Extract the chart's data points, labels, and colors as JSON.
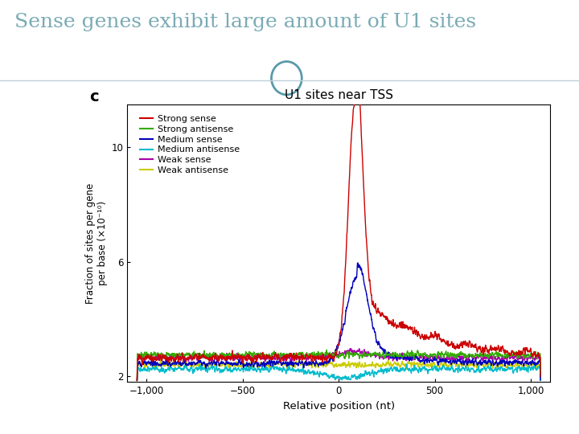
{
  "title": "Sense genes exhibit large amount of U1 sites",
  "title_color": "#7aabb5",
  "plot_title": "U1 sites near TSS",
  "xlabel": "Relative position (nt)",
  "ylabel": "Fraction of sites per gene\nper base (×10⁻¹⁰)",
  "xlim": [
    -1100,
    1100
  ],
  "ylim": [
    1.8,
    11.5
  ],
  "yticks": [
    2,
    6,
    10
  ],
  "xticks": [
    -1000,
    -500,
    0,
    500,
    1000
  ],
  "xticklabels": [
    "−1,000",
    "−500",
    "0",
    "500",
    "1,000"
  ],
  "colors": {
    "strong_sense": "#cc0000",
    "strong_antisense": "#33aa00",
    "medium_sense": "#0000bb",
    "medium_antisense": "#00bbcc",
    "weak_sense": "#aa00aa",
    "weak_antisense": "#cccc00"
  },
  "legend_labels": [
    "Strong sense",
    "Strong antisense",
    "Medium sense",
    "Medium antisense",
    "Weak sense",
    "Weak antisense"
  ],
  "outer_bg": "#ffffff",
  "panel_bg": "#ffffff",
  "header_bg": "#ffffff",
  "footer_bg": "#8aacb8",
  "divider_color": "#c0d0d8",
  "circle_color": "#5a9aaa",
  "panel_label": "c"
}
